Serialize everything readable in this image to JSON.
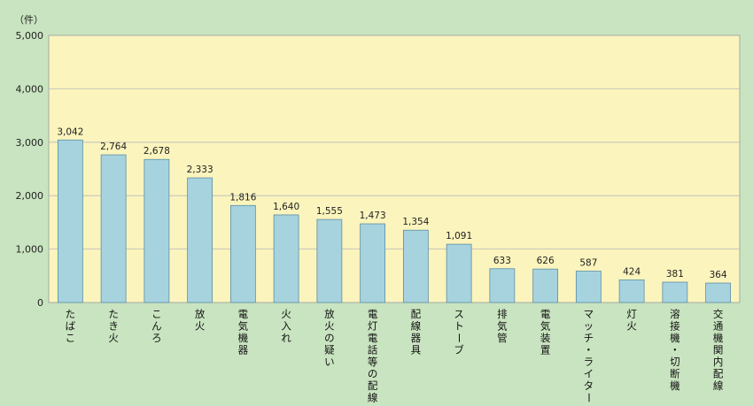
{
  "chart_data": {
    "type": "bar",
    "unit": "（件）",
    "categories": [
      "たばこ",
      "たき火",
      "こんろ",
      "放火",
      "電気機器",
      "火入れ",
      "放火の疑い",
      "電灯電話等の配線",
      "配線器具",
      "ストーブ",
      "排気管",
      "電気装置",
      "マッチ・ライター",
      "灯火",
      "溶接機・切断機",
      "交通機関内配線"
    ],
    "values": [
      3042,
      2764,
      2678,
      2333,
      1816,
      1640,
      1555,
      1473,
      1354,
      1091,
      633,
      626,
      587,
      424,
      381,
      364
    ],
    "value_labels": [
      "3,042",
      "2,764",
      "2,678",
      "2,333",
      "1,816",
      "1,640",
      "1,555",
      "1,473",
      "1,354",
      "1,091",
      "633",
      "626",
      "587",
      "424",
      "381",
      "364"
    ],
    "yticks": [
      0,
      1000,
      2000,
      3000,
      4000,
      5000
    ],
    "ytick_labels": [
      "0",
      "1,000",
      "2,000",
      "3,000",
      "4,000",
      "5,000"
    ],
    "ylim": [
      0,
      5000
    ],
    "grid": true,
    "legend": "none",
    "colors": {
      "background": "#c9e4c0",
      "plot_area": "#fbf4bd",
      "bar_fill": "#a7d3df",
      "bar_stroke": "#5c8fa3",
      "grid": "#b9b9b9"
    }
  }
}
